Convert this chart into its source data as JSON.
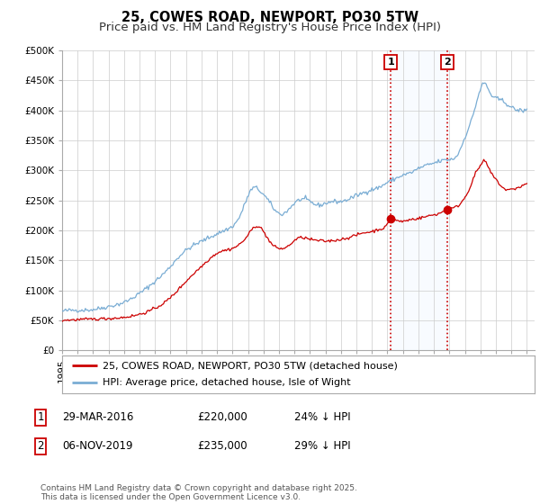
{
  "title": "25, COWES ROAD, NEWPORT, PO30 5TW",
  "subtitle": "Price paid vs. HM Land Registry's House Price Index (HPI)",
  "ylim": [
    0,
    500000
  ],
  "yticks": [
    0,
    50000,
    100000,
    150000,
    200000,
    250000,
    300000,
    350000,
    400000,
    450000,
    500000
  ],
  "ytick_labels": [
    "£0",
    "£50K",
    "£100K",
    "£150K",
    "£200K",
    "£250K",
    "£300K",
    "£350K",
    "£400K",
    "£450K",
    "£500K"
  ],
  "red_line_color": "#cc0000",
  "blue_line_color": "#7aadd4",
  "vline_color": "#cc0000",
  "shade_color": "#ddeeff",
  "marker1_date": 2016.23,
  "marker2_date": 2019.85,
  "marker1_value": 220000,
  "marker2_value": 235000,
  "legend_red_label": "25, COWES ROAD, NEWPORT, PO30 5TW (detached house)",
  "legend_blue_label": "HPI: Average price, detached house, Isle of Wight",
  "table_row1": [
    "1",
    "29-MAR-2016",
    "£220,000",
    "24% ↓ HPI"
  ],
  "table_row2": [
    "2",
    "06-NOV-2019",
    "£235,000",
    "29% ↓ HPI"
  ],
  "footer": "Contains HM Land Registry data © Crown copyright and database right 2025.\nThis data is licensed under the Open Government Licence v3.0.",
  "title_fontsize": 10.5,
  "subtitle_fontsize": 9.5,
  "tick_fontsize": 7.5,
  "legend_fontsize": 8.0,
  "table_fontsize": 8.5,
  "footer_fontsize": 6.5,
  "background_color": "#ffffff",
  "grid_color": "#cccccc",
  "xlim_left": 1995.0,
  "xlim_right": 2025.5,
  "hpi_anchors": [
    [
      1995.0,
      65000
    ],
    [
      1996.0,
      67000
    ],
    [
      1997.0,
      68000
    ],
    [
      1998.0,
      73000
    ],
    [
      1999.0,
      80000
    ],
    [
      2000.0,
      95000
    ],
    [
      2001.0,
      115000
    ],
    [
      2002.0,
      140000
    ],
    [
      2002.5,
      155000
    ],
    [
      2003.5,
      175000
    ],
    [
      2004.5,
      188000
    ],
    [
      2005.5,
      200000
    ],
    [
      2006.5,
      225000
    ],
    [
      2007.3,
      270000
    ],
    [
      2007.8,
      265000
    ],
    [
      2008.3,
      250000
    ],
    [
      2008.8,
      232000
    ],
    [
      2009.3,
      228000
    ],
    [
      2009.8,
      240000
    ],
    [
      2010.5,
      252000
    ],
    [
      2011.0,
      248000
    ],
    [
      2011.5,
      242000
    ],
    [
      2012.0,
      245000
    ],
    [
      2012.5,
      248000
    ],
    [
      2013.0,
      248000
    ],
    [
      2013.5,
      252000
    ],
    [
      2014.0,
      258000
    ],
    [
      2014.5,
      263000
    ],
    [
      2015.0,
      268000
    ],
    [
      2015.5,
      272000
    ],
    [
      2016.0,
      280000
    ],
    [
      2016.5,
      286000
    ],
    [
      2017.0,
      292000
    ],
    [
      2017.5,
      296000
    ],
    [
      2018.0,
      303000
    ],
    [
      2018.5,
      308000
    ],
    [
      2019.0,
      312000
    ],
    [
      2019.5,
      316000
    ],
    [
      2020.0,
      318000
    ],
    [
      2020.5,
      325000
    ],
    [
      2021.0,
      355000
    ],
    [
      2021.5,
      390000
    ],
    [
      2022.0,
      435000
    ],
    [
      2022.3,
      445000
    ],
    [
      2022.6,
      430000
    ],
    [
      2023.0,
      420000
    ],
    [
      2023.5,
      415000
    ],
    [
      2024.0,
      405000
    ],
    [
      2024.5,
      400000
    ],
    [
      2025.0,
      400000
    ]
  ],
  "red_anchors": [
    [
      1995.0,
      50000
    ],
    [
      1996.0,
      51000
    ],
    [
      1997.0,
      52000
    ],
    [
      1998.0,
      53000
    ],
    [
      1999.0,
      55000
    ],
    [
      2000.0,
      60000
    ],
    [
      2001.0,
      70000
    ],
    [
      2002.0,
      88000
    ],
    [
      2003.0,
      115000
    ],
    [
      2004.0,
      140000
    ],
    [
      2004.5,
      152000
    ],
    [
      2005.0,
      162000
    ],
    [
      2006.0,
      170000
    ],
    [
      2007.0,
      192000
    ],
    [
      2007.5,
      207000
    ],
    [
      2008.0,
      198000
    ],
    [
      2008.5,
      178000
    ],
    [
      2009.0,
      170000
    ],
    [
      2009.5,
      172000
    ],
    [
      2010.0,
      183000
    ],
    [
      2010.5,
      188000
    ],
    [
      2011.0,
      185000
    ],
    [
      2011.5,
      183000
    ],
    [
      2012.0,
      182000
    ],
    [
      2012.5,
      183000
    ],
    [
      2013.0,
      185000
    ],
    [
      2013.5,
      188000
    ],
    [
      2014.0,
      192000
    ],
    [
      2014.5,
      196000
    ],
    [
      2015.0,
      198000
    ],
    [
      2015.5,
      202000
    ],
    [
      2016.0,
      210000
    ],
    [
      2016.23,
      220000
    ],
    [
      2016.5,
      218000
    ],
    [
      2017.0,
      215000
    ],
    [
      2017.5,
      218000
    ],
    [
      2018.0,
      220000
    ],
    [
      2018.5,
      223000
    ],
    [
      2019.0,
      226000
    ],
    [
      2019.5,
      230000
    ],
    [
      2019.85,
      235000
    ],
    [
      2020.0,
      236000
    ],
    [
      2020.5,
      240000
    ],
    [
      2021.0,
      255000
    ],
    [
      2021.3,
      270000
    ],
    [
      2021.6,
      290000
    ],
    [
      2022.0,
      308000
    ],
    [
      2022.3,
      315000
    ],
    [
      2022.6,
      300000
    ],
    [
      2023.0,
      285000
    ],
    [
      2023.5,
      270000
    ],
    [
      2024.0,
      268000
    ],
    [
      2024.5,
      272000
    ],
    [
      2025.0,
      278000
    ]
  ]
}
